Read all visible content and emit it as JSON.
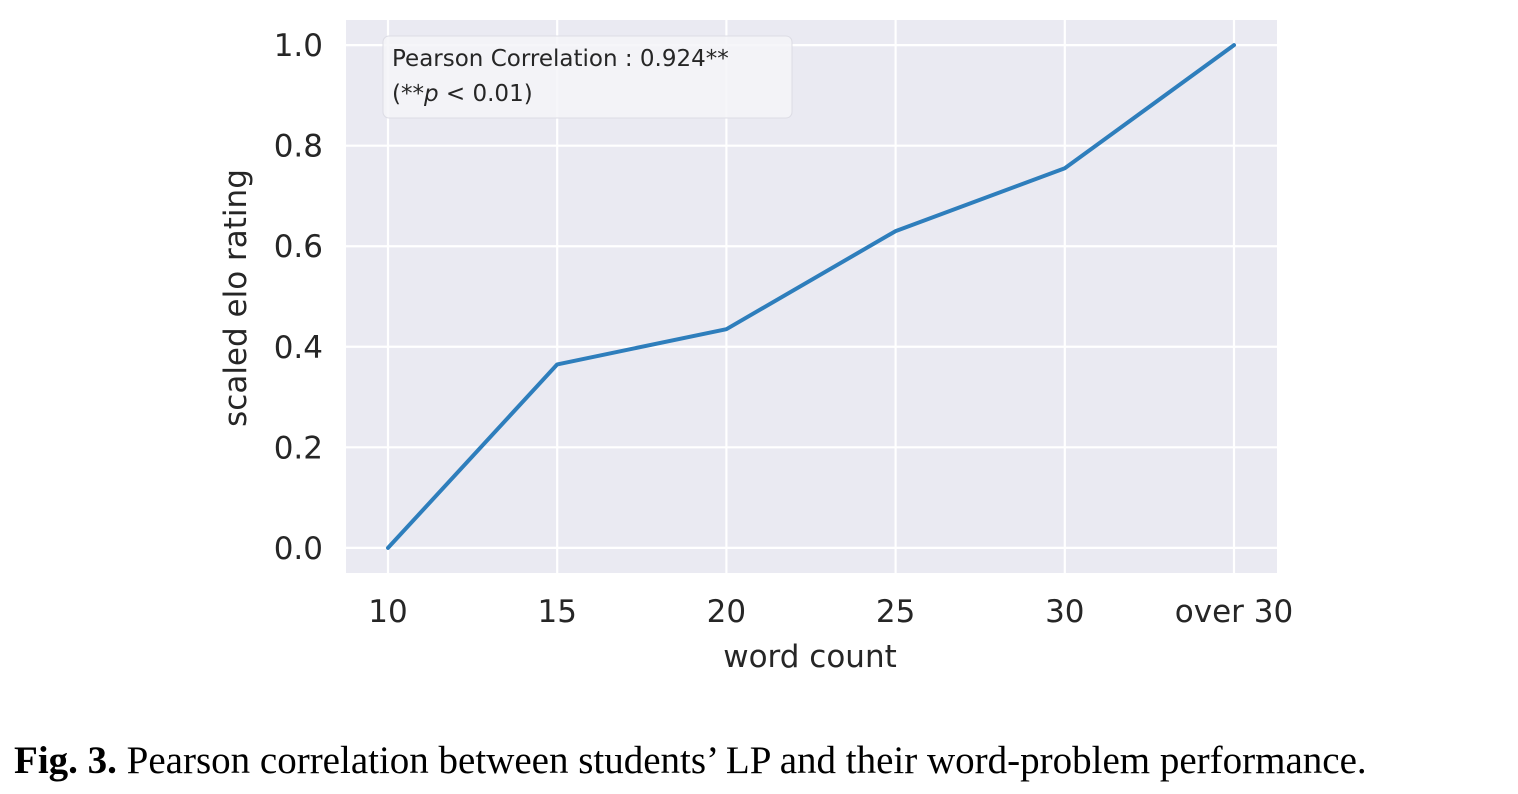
{
  "chart_data": {
    "type": "line",
    "categories": [
      "10",
      "15",
      "20",
      "25",
      "30",
      "over 30"
    ],
    "series": [
      {
        "values": [
          0.0,
          0.365,
          0.435,
          0.63,
          0.755,
          1.0
        ]
      }
    ],
    "xlabel": "word count",
    "ylabel": "scaled elo rating",
    "ylim": [
      -0.05,
      1.05
    ],
    "yticks": [
      "0.0",
      "0.2",
      "0.4",
      "0.6",
      "0.8",
      "1.0"
    ],
    "ytick_values": [
      0.0,
      0.2,
      0.4,
      0.6,
      0.8,
      1.0
    ],
    "grid": true,
    "annotation": {
      "line1": "Pearson Correlation : 0.924**",
      "line2_prefix": "(**",
      "line2_italic": "p",
      "line2_suffix": " < 0.01)",
      "placement": "top-left"
    },
    "colors": {
      "background": "#eaeaf2",
      "grid": "#ffffff",
      "line": "#2e7ebc"
    }
  },
  "caption": {
    "prefix": "Fig. 3.",
    "text": " Pearson correlation between students’ LP and their word-problem performance."
  }
}
